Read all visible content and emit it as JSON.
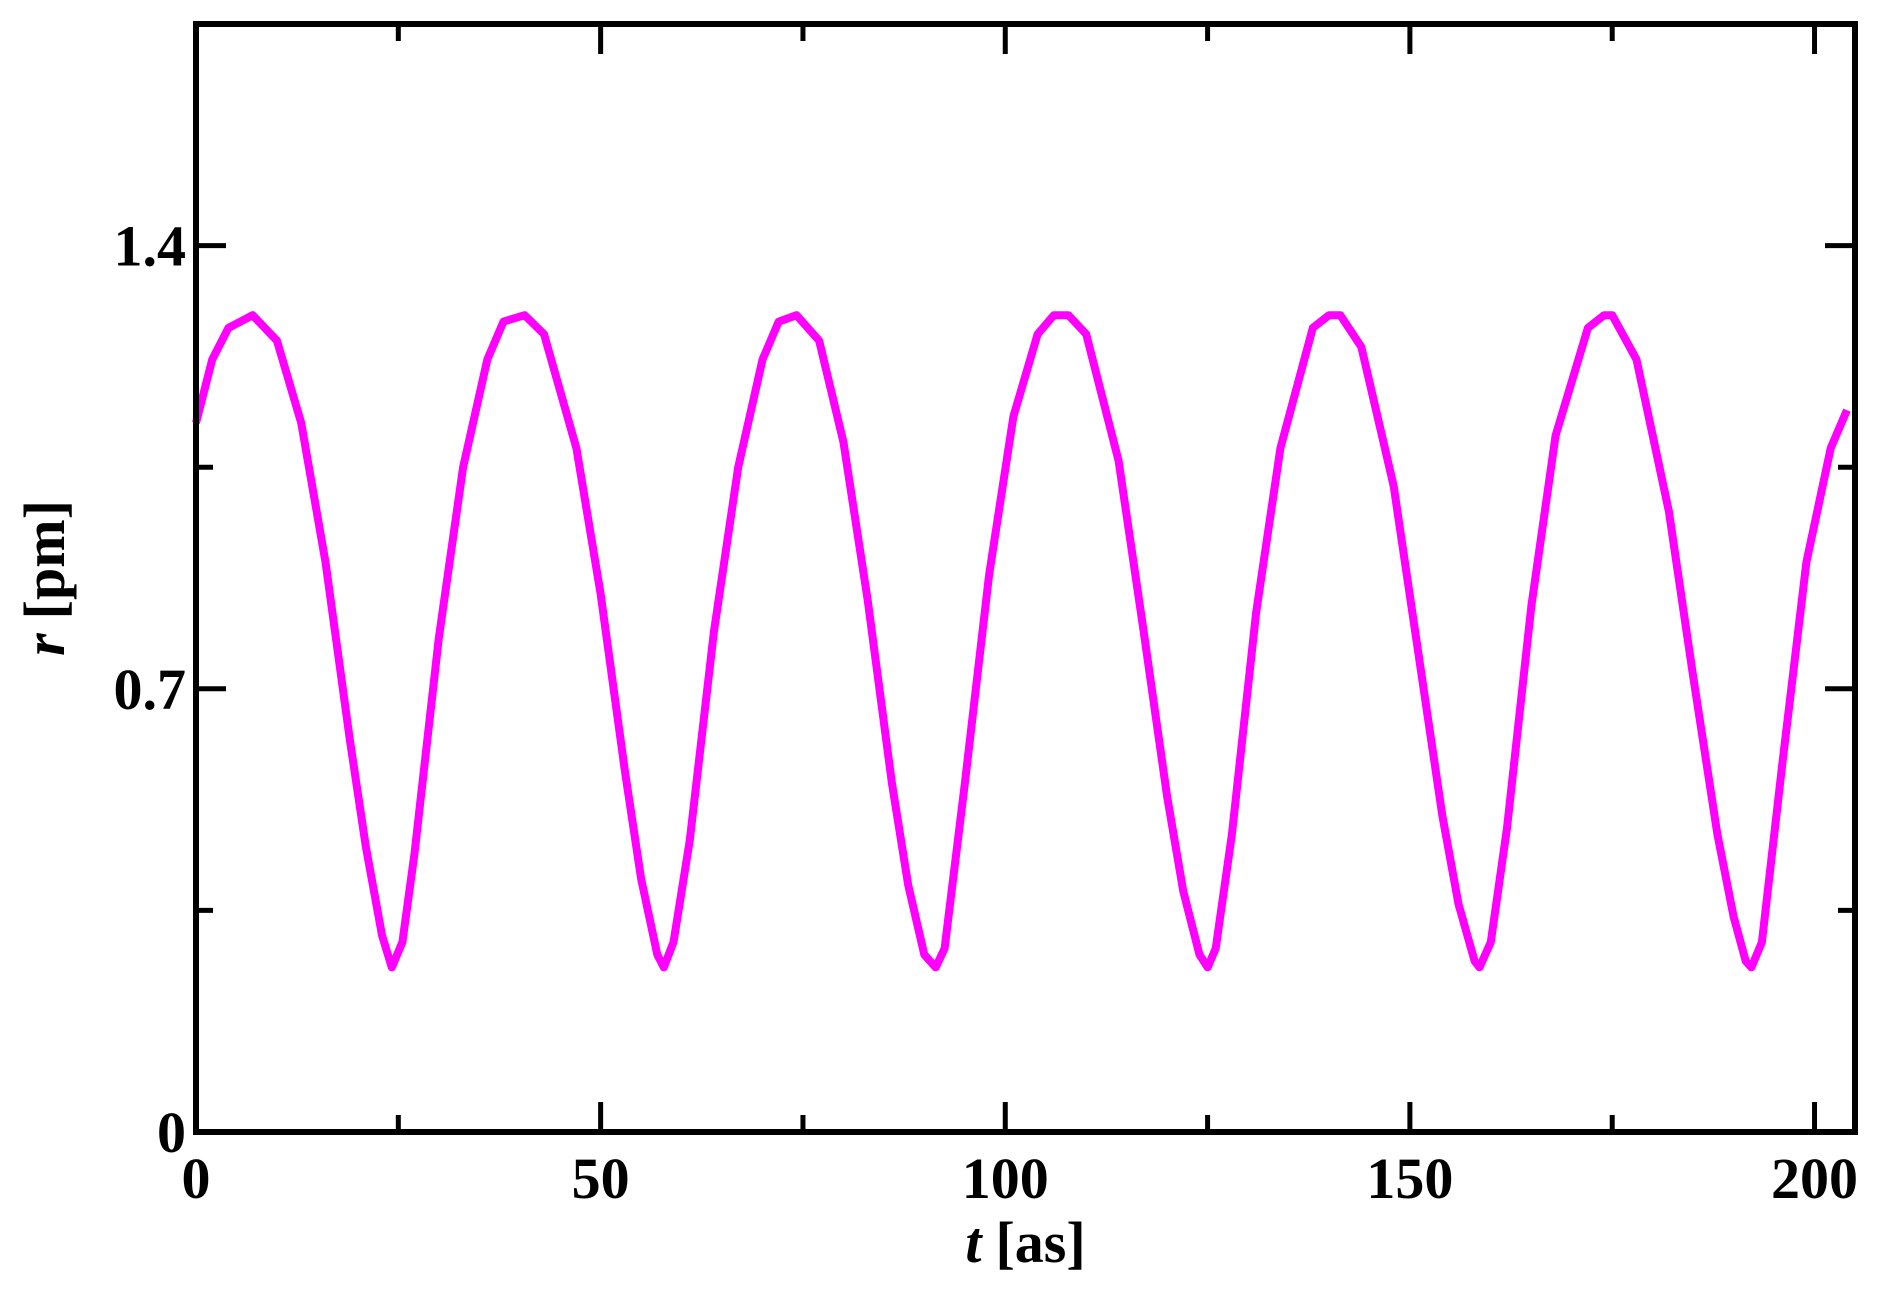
{
  "chart_data": {
    "type": "line",
    "xlabel_var": "t",
    "xlabel_unit": "[as]",
    "ylabel_var": "r",
    "ylabel_unit": "[pm]",
    "xlim": [
      0,
      205
    ],
    "ylim": [
      0,
      1.75
    ],
    "x_ticks": [
      0,
      50,
      100,
      150,
      200
    ],
    "x_tick_labels": [
      "0",
      "50",
      "100",
      "150",
      "200"
    ],
    "x_minor_ticks": [
      25,
      75,
      125,
      175
    ],
    "y_ticks": [
      0,
      0.7,
      1.4
    ],
    "y_tick_labels": [
      "0",
      "0.7",
      "1.4"
    ],
    "y_minor_ticks": [
      0.35,
      1.05
    ],
    "grid": false,
    "series": [
      {
        "color": "#ff00ff",
        "period": 33.6,
        "r_max": 1.29,
        "r_min": 0.25,
        "t_first_max": 7.0,
        "x": [
          0,
          2,
          4,
          7,
          10,
          13,
          16,
          19,
          21,
          23,
          24.2,
          25.5,
          27,
          30,
          33,
          36,
          38,
          40.6,
          43,
          47,
          50,
          53,
          55,
          57,
          57.8,
          59,
          61,
          64,
          67,
          70,
          72,
          74.2,
          77,
          80,
          83,
          86,
          88,
          90,
          91.4,
          92.5,
          95,
          98,
          101,
          104,
          106,
          107.8,
          110,
          114,
          117,
          120,
          122,
          124,
          125,
          126,
          128,
          131,
          134,
          138,
          140,
          141.4,
          144,
          148,
          151,
          154,
          156,
          158,
          158.6,
          160,
          162,
          165,
          168,
          172,
          174,
          175,
          178,
          182,
          185,
          188,
          190,
          191.5,
          192.2,
          193.5,
          196,
          199,
          202,
          204
        ],
        "y": [
          1.12,
          1.22,
          1.27,
          1.29,
          1.25,
          1.12,
          0.9,
          0.62,
          0.45,
          0.31,
          0.26,
          0.3,
          0.44,
          0.78,
          1.05,
          1.22,
          1.28,
          1.29,
          1.26,
          1.08,
          0.85,
          0.57,
          0.4,
          0.28,
          0.26,
          0.3,
          0.46,
          0.79,
          1.05,
          1.22,
          1.28,
          1.29,
          1.25,
          1.09,
          0.84,
          0.55,
          0.39,
          0.28,
          0.26,
          0.29,
          0.55,
          0.88,
          1.13,
          1.26,
          1.29,
          1.29,
          1.26,
          1.06,
          0.8,
          0.53,
          0.38,
          0.28,
          0.26,
          0.29,
          0.47,
          0.82,
          1.08,
          1.27,
          1.29,
          1.29,
          1.24,
          1.02,
          0.76,
          0.5,
          0.36,
          0.27,
          0.26,
          0.3,
          0.48,
          0.83,
          1.1,
          1.27,
          1.29,
          1.29,
          1.22,
          0.98,
          0.72,
          0.47,
          0.34,
          0.27,
          0.26,
          0.3,
          0.58,
          0.9,
          1.08,
          1.14
        ]
      }
    ]
  }
}
